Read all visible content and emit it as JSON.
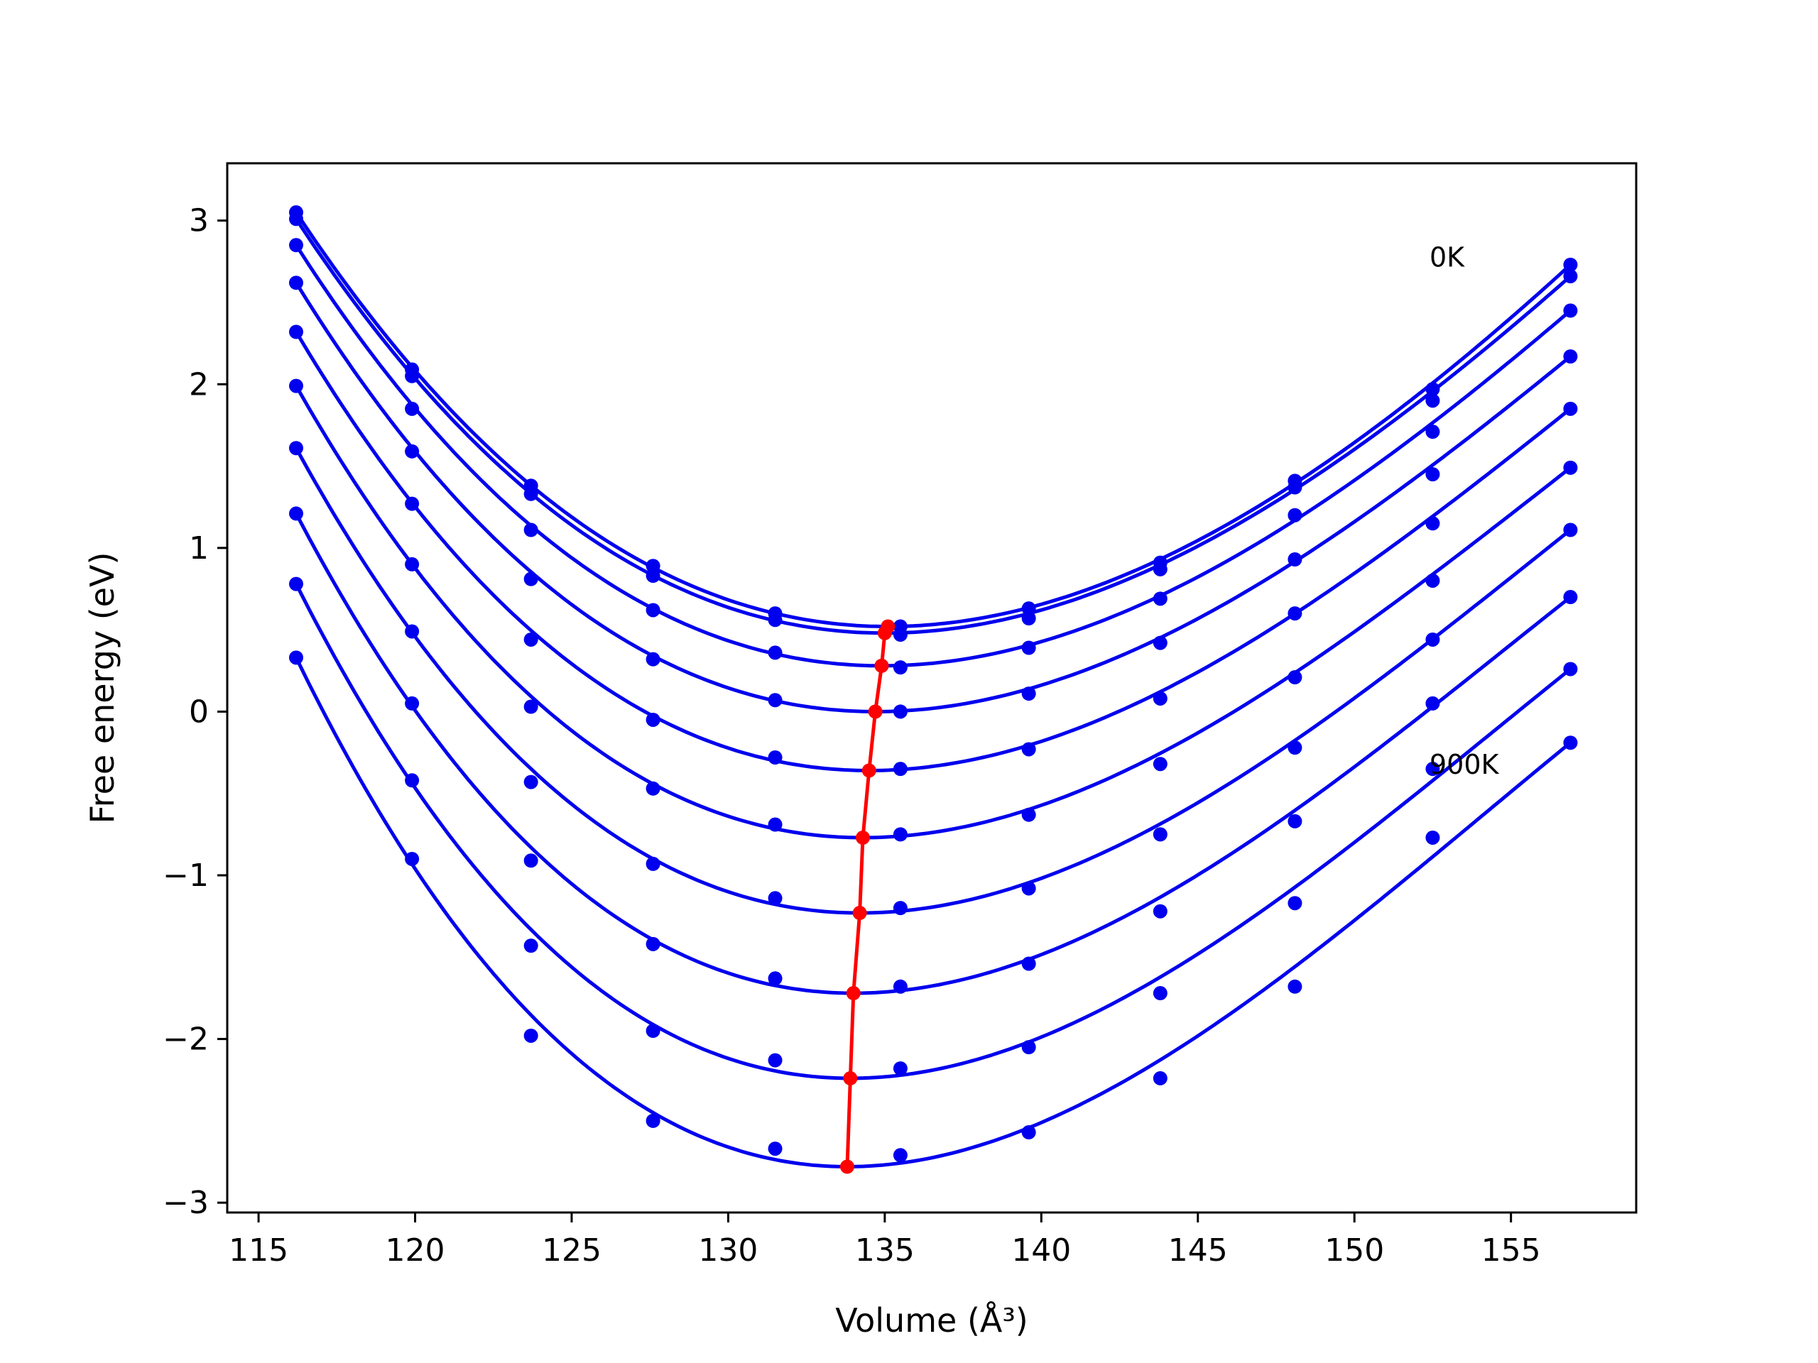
{
  "chart_data": {
    "type": "line",
    "xlabel": "Volume (Å³)",
    "ylabel": "Free energy (eV)",
    "xlim": [
      114,
      159
    ],
    "ylim": [
      -3.06,
      3.35
    ],
    "xticks": [
      115,
      120,
      125,
      130,
      135,
      140,
      145,
      150,
      155
    ],
    "yticks": [
      3,
      2,
      1,
      0,
      -1,
      -2,
      -3
    ],
    "ytick_labels": [
      "3",
      "2",
      "1",
      "0",
      "−1",
      "−2",
      "−3"
    ],
    "annotations": [
      {
        "text": "0K",
        "x": 152.4,
        "y": 2.72
      },
      {
        "text": "900K",
        "x": 152.4,
        "y": -0.38
      }
    ],
    "volumes": [
      116.2,
      119.9,
      123.7,
      127.6,
      131.5,
      135.5,
      139.6,
      143.8,
      148.1,
      152.5,
      156.9
    ],
    "series": [
      {
        "label": "0K",
        "min_volume": 135.1,
        "min_energy": 0.52,
        "points": [
          3.05,
          2.09,
          1.38,
          0.89,
          0.6,
          0.52,
          0.63,
          0.91,
          1.41,
          1.97,
          2.73
        ]
      },
      {
        "min_volume": 135.0,
        "min_energy": 0.48,
        "points": [
          3.01,
          2.05,
          1.33,
          0.83,
          0.56,
          0.47,
          0.57,
          0.87,
          1.37,
          1.9,
          2.66
        ]
      },
      {
        "min_volume": 134.9,
        "min_energy": 0.28,
        "points": [
          2.85,
          1.85,
          1.11,
          0.62,
          0.36,
          0.27,
          0.39,
          0.69,
          1.2,
          1.71,
          2.45
        ]
      },
      {
        "min_volume": 134.7,
        "min_energy": 0.0,
        "points": [
          2.62,
          1.59,
          0.81,
          0.32,
          0.07,
          0.0,
          0.11,
          0.42,
          0.93,
          1.45,
          2.17
        ]
      },
      {
        "min_volume": 134.5,
        "min_energy": -0.36,
        "points": [
          2.32,
          1.27,
          0.44,
          -0.05,
          -0.28,
          -0.35,
          -0.23,
          0.08,
          0.6,
          1.15,
          1.85
        ]
      },
      {
        "min_volume": 134.3,
        "min_energy": -0.77,
        "points": [
          1.99,
          0.9,
          0.03,
          -0.47,
          -0.69,
          -0.75,
          -0.63,
          -0.32,
          0.21,
          0.8,
          1.49
        ]
      },
      {
        "min_volume": 134.2,
        "min_energy": -1.23,
        "points": [
          1.61,
          0.49,
          -0.43,
          -0.93,
          -1.14,
          -1.2,
          -1.08,
          -0.75,
          -0.22,
          0.44,
          1.11
        ]
      },
      {
        "min_volume": 134.0,
        "min_energy": -1.72,
        "points": [
          1.21,
          0.05,
          -0.91,
          -1.42,
          -1.63,
          -1.68,
          -1.54,
          -1.22,
          -0.67,
          0.05,
          0.7
        ]
      },
      {
        "min_volume": 133.9,
        "min_energy": -2.24,
        "points": [
          0.78,
          -0.42,
          -1.43,
          -1.95,
          -2.13,
          -2.18,
          -2.05,
          -1.72,
          -1.17,
          -0.35,
          0.26
        ]
      },
      {
        "label": "900K",
        "min_volume": 133.8,
        "min_energy": -2.78,
        "points": [
          0.33,
          -0.9,
          -1.98,
          -2.5,
          -2.67,
          -2.71,
          -2.57,
          -2.24,
          -1.68,
          -0.77,
          -0.19
        ]
      }
    ],
    "colors": {
      "curves": "#0000ee",
      "minima": "#ff0000",
      "axes": "#000000"
    }
  }
}
